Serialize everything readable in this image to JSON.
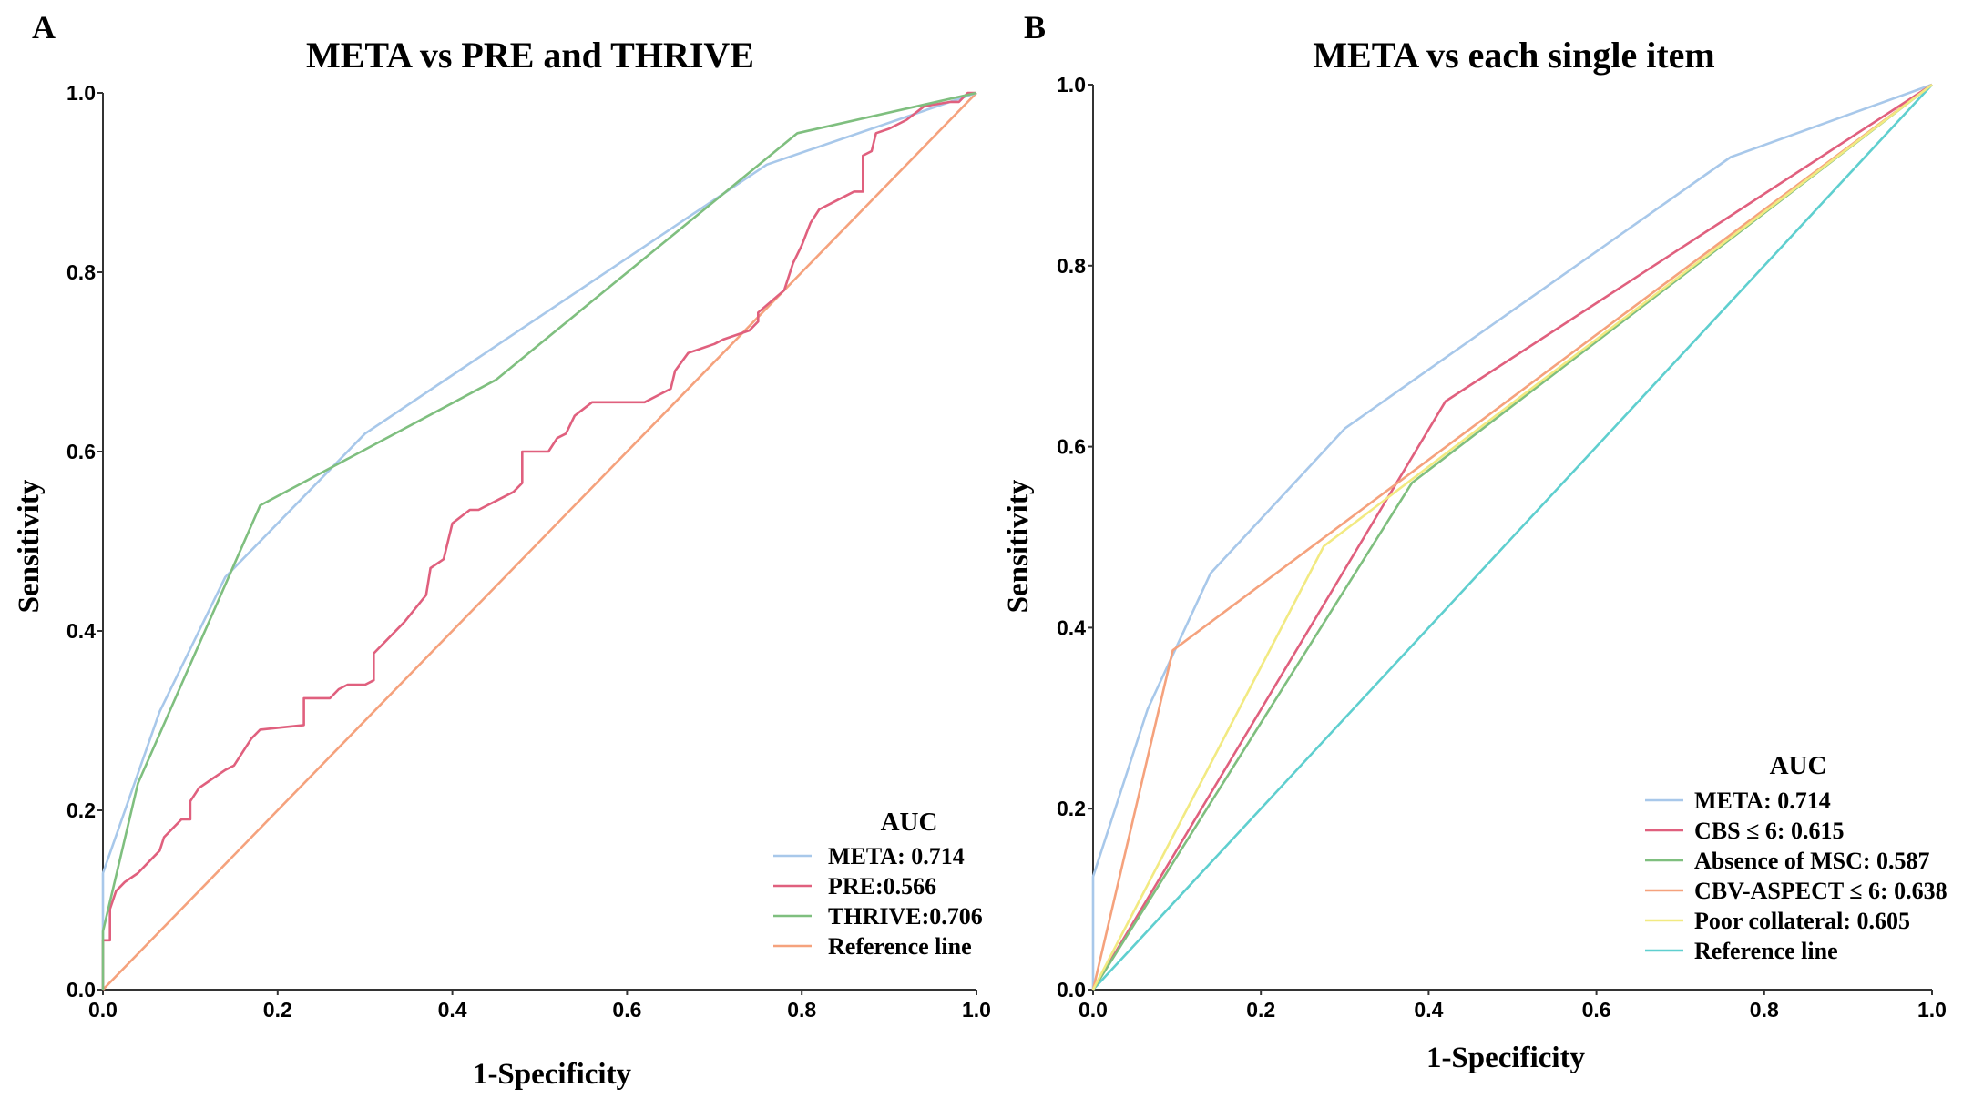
{
  "chart_data": [
    {
      "panel": "A",
      "type": "line",
      "title": "META vs PRE and THRIVE",
      "xlabel": "1-Specificity",
      "ylabel": "Sensitivity",
      "xlim": [
        0,
        1
      ],
      "ylim": [
        0,
        1
      ],
      "xticks": [
        "0.0",
        "0.2",
        "0.4",
        "0.6",
        "0.8",
        "1.0"
      ],
      "yticks": [
        "0.0",
        "0.2",
        "0.4",
        "0.6",
        "0.8",
        "1.0"
      ],
      "grid": false,
      "legend": {
        "title": "AUC",
        "placement": "bottom-right"
      },
      "series": [
        {
          "name": "META: 0.714",
          "color": "#a8c8ea",
          "points": [
            [
              0,
              0
            ],
            [
              0,
              0.13
            ],
            [
              0.065,
              0.31
            ],
            [
              0.14,
              0.46
            ],
            [
              0.3,
              0.62
            ],
            [
              0.76,
              0.92
            ],
            [
              1,
              1
            ]
          ]
        },
        {
          "name": "PRE:0.566",
          "color": "#e0607e",
          "points": [
            [
              0,
              0
            ],
            [
              0,
              0.055
            ],
            [
              0.008,
              0.055
            ],
            [
              0.008,
              0.09
            ],
            [
              0.015,
              0.11
            ],
            [
              0.025,
              0.12
            ],
            [
              0.04,
              0.13
            ],
            [
              0.055,
              0.145
            ],
            [
              0.065,
              0.155
            ],
            [
              0.07,
              0.17
            ],
            [
              0.08,
              0.18
            ],
            [
              0.09,
              0.19
            ],
            [
              0.1,
              0.19
            ],
            [
              0.1,
              0.21
            ],
            [
              0.11,
              0.225
            ],
            [
              0.125,
              0.235
            ],
            [
              0.14,
              0.245
            ],
            [
              0.15,
              0.25
            ],
            [
              0.17,
              0.28
            ],
            [
              0.18,
              0.29
            ],
            [
              0.23,
              0.295
            ],
            [
              0.23,
              0.325
            ],
            [
              0.26,
              0.325
            ],
            [
              0.27,
              0.335
            ],
            [
              0.28,
              0.34
            ],
            [
              0.3,
              0.34
            ],
            [
              0.31,
              0.345
            ],
            [
              0.31,
              0.375
            ],
            [
              0.32,
              0.385
            ],
            [
              0.345,
              0.41
            ],
            [
              0.37,
              0.44
            ],
            [
              0.375,
              0.47
            ],
            [
              0.39,
              0.48
            ],
            [
              0.4,
              0.52
            ],
            [
              0.42,
              0.535
            ],
            [
              0.43,
              0.535
            ],
            [
              0.45,
              0.545
            ],
            [
              0.47,
              0.555
            ],
            [
              0.48,
              0.565
            ],
            [
              0.48,
              0.6
            ],
            [
              0.51,
              0.6
            ],
            [
              0.52,
              0.615
            ],
            [
              0.53,
              0.62
            ],
            [
              0.54,
              0.64
            ],
            [
              0.56,
              0.655
            ],
            [
              0.62,
              0.655
            ],
            [
              0.65,
              0.67
            ],
            [
              0.655,
              0.69
            ],
            [
              0.67,
              0.71
            ],
            [
              0.7,
              0.72
            ],
            [
              0.71,
              0.725
            ],
            [
              0.74,
              0.735
            ],
            [
              0.75,
              0.745
            ],
            [
              0.75,
              0.755
            ],
            [
              0.78,
              0.78
            ],
            [
              0.79,
              0.81
            ],
            [
              0.8,
              0.83
            ],
            [
              0.81,
              0.855
            ],
            [
              0.82,
              0.87
            ],
            [
              0.84,
              0.88
            ],
            [
              0.85,
              0.885
            ],
            [
              0.86,
              0.89
            ],
            [
              0.87,
              0.89
            ],
            [
              0.87,
              0.93
            ],
            [
              0.88,
              0.935
            ],
            [
              0.885,
              0.955
            ],
            [
              0.9,
              0.96
            ],
            [
              0.92,
              0.97
            ],
            [
              0.94,
              0.985
            ],
            [
              0.97,
              0.99
            ],
            [
              0.98,
              0.99
            ],
            [
              0.99,
              1
            ],
            [
              1,
              1
            ]
          ]
        },
        {
          "name": "THRIVE:0.706",
          "color": "#7fbf7f",
          "points": [
            [
              0,
              0
            ],
            [
              0,
              0.065
            ],
            [
              0.04,
              0.23
            ],
            [
              0.18,
              0.54
            ],
            [
              0.45,
              0.68
            ],
            [
              0.795,
              0.955
            ],
            [
              1,
              1
            ]
          ]
        },
        {
          "name": "Reference line",
          "color": "#f5a27d",
          "points": [
            [
              0,
              0
            ],
            [
              1,
              1
            ]
          ]
        }
      ]
    },
    {
      "panel": "B",
      "type": "line",
      "title": "META vs each single item",
      "xlabel": "1-Specificity",
      "ylabel": "Sensitivity",
      "xlim": [
        0,
        1
      ],
      "ylim": [
        0,
        1
      ],
      "xticks": [
        "0.0",
        "0.2",
        "0.4",
        "0.6",
        "0.8",
        "1.0"
      ],
      "yticks": [
        "0.0",
        "0.2",
        "0.4",
        "0.6",
        "0.8",
        "1.0"
      ],
      "grid": false,
      "legend": {
        "title": "AUC",
        "placement": "bottom-right"
      },
      "series": [
        {
          "name": "META: 0.714",
          "color": "#a8c8ea",
          "points": [
            [
              0,
              0
            ],
            [
              0,
              0.125
            ],
            [
              0.065,
              0.31
            ],
            [
              0.14,
              0.46
            ],
            [
              0.3,
              0.62
            ],
            [
              0.76,
              0.92
            ],
            [
              1,
              1
            ]
          ]
        },
        {
          "name": "CBS ≤ 6: 0.615",
          "color": "#e0607e",
          "points": [
            [
              0,
              0
            ],
            [
              0.42,
              0.65
            ],
            [
              1,
              1
            ]
          ]
        },
        {
          "name": "Absence of MSC: 0.587",
          "color": "#7fbf7f",
          "points": [
            [
              0,
              0
            ],
            [
              0.38,
              0.56
            ],
            [
              1,
              1
            ]
          ]
        },
        {
          "name": "CBV-ASPECT ≤ 6: 0.638",
          "color": "#f5a27d",
          "points": [
            [
              0,
              0
            ],
            [
              0.095,
              0.375
            ],
            [
              1,
              1
            ]
          ]
        },
        {
          "name": "Poor collateral: 0.605",
          "color": "#f2ea82",
          "points": [
            [
              0,
              0
            ],
            [
              0.275,
              0.49
            ],
            [
              1,
              1
            ]
          ]
        },
        {
          "name": "Reference line",
          "color": "#5fcfcf",
          "points": [
            [
              0,
              0
            ],
            [
              1,
              1
            ]
          ]
        }
      ]
    }
  ]
}
